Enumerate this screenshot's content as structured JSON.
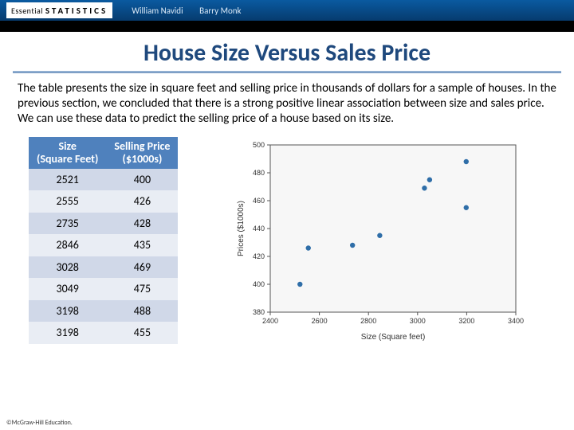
{
  "header": {
    "brand_small": "Essential",
    "brand_big": "STATISTICS",
    "author1": "William Navidi",
    "author2": "Barry Monk"
  },
  "title": "House Size Versus Sales Price",
  "paragraph": "The table presents the size in square feet and selling price in thousands of dollars for a sample of houses. In the previous section, we concluded that there is a strong positive linear association between size and sales price. We can use these data to predict the selling price of a house based on its size.",
  "table": {
    "col1_a": "Size",
    "col1_b": "(Square Feet)",
    "col2_a": "Selling Price",
    "col2_b": "($1000s)",
    "rows": [
      {
        "size": "2521",
        "price": "400"
      },
      {
        "size": "2555",
        "price": "426"
      },
      {
        "size": "2735",
        "price": "428"
      },
      {
        "size": "2846",
        "price": "435"
      },
      {
        "size": "3028",
        "price": "469"
      },
      {
        "size": "3049",
        "price": "475"
      },
      {
        "size": "3198",
        "price": "488"
      },
      {
        "size": "3198",
        "price": "455"
      }
    ]
  },
  "chart": {
    "type": "scatter",
    "xlabel": "Size (Square feet)",
    "ylabel": "Prices ($1000s)",
    "xlim": [
      2400,
      3400
    ],
    "ylim": [
      380,
      500
    ],
    "xtick_step": 200,
    "ytick_step": 20,
    "xticks": [
      2400,
      2600,
      2800,
      3000,
      3200,
      3400
    ],
    "yticks": [
      380,
      400,
      420,
      440,
      460,
      480,
      500
    ],
    "marker_color": "#2f6ea8",
    "marker_radius": 3.2,
    "grid_color": "#f7f7f7",
    "axis_color": "#555555",
    "tick_fontsize": 9,
    "label_fontsize": 10,
    "points": [
      {
        "x": 2521,
        "y": 400
      },
      {
        "x": 2555,
        "y": 426
      },
      {
        "x": 2735,
        "y": 428
      },
      {
        "x": 2846,
        "y": 435
      },
      {
        "x": 3028,
        "y": 469
      },
      {
        "x": 3049,
        "y": 475
      },
      {
        "x": 3198,
        "y": 488
      },
      {
        "x": 3198,
        "y": 455
      }
    ]
  },
  "footer": "©McGraw-Hill Education."
}
